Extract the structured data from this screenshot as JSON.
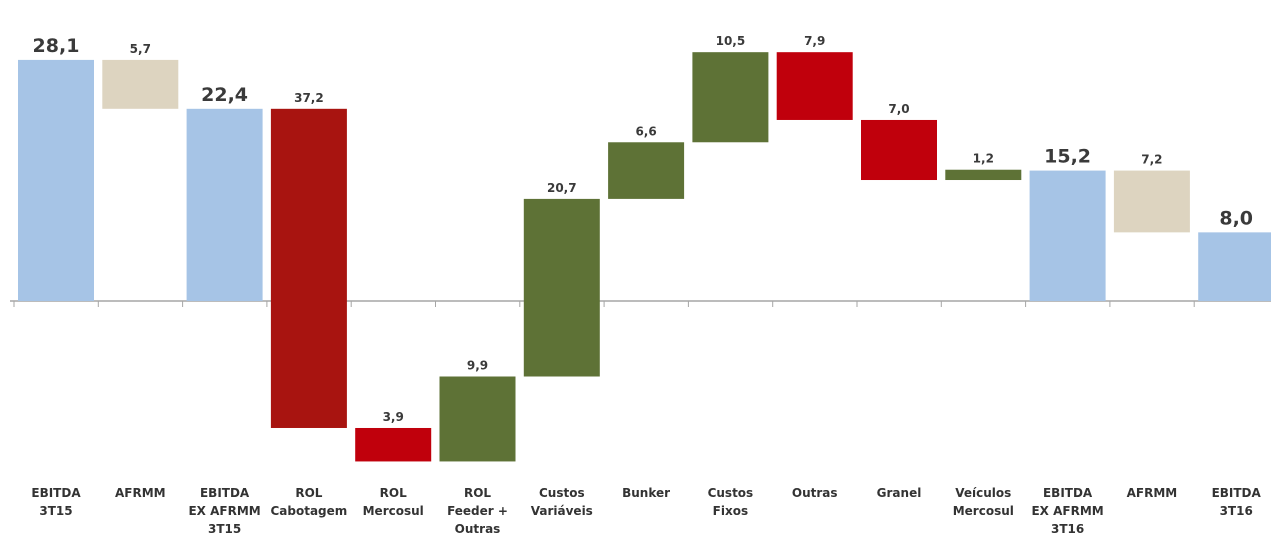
{
  "chart_data": {
    "type": "bar",
    "subtype": "waterfall",
    "grid": false,
    "legend": "none",
    "colors": {
      "total": "#A6C4E6",
      "afrmm": "#DDD4C0",
      "decrease_dark": "#A81410",
      "decrease": "#C0000C",
      "increase": "#5E7236",
      "axis": "#A6A6A6"
    },
    "bars": [
      {
        "category": [
          "EBITDA",
          "3T15"
        ],
        "value": 28.1,
        "label": "28,1",
        "start": 0,
        "end": 28.1,
        "kind": "total",
        "emphasis": true
      },
      {
        "category": [
          "AFRMM"
        ],
        "value": 5.7,
        "label": "5,7",
        "start": 28.1,
        "end": 22.4,
        "kind": "afrmm",
        "emphasis": false
      },
      {
        "category": [
          "EBITDA",
          "EX AFRMM",
          "3T15"
        ],
        "value": 22.4,
        "label": "22,4",
        "start": 0,
        "end": 22.4,
        "kind": "total",
        "emphasis": true
      },
      {
        "category": [
          "ROL",
          "Cabotagem"
        ],
        "value": 37.2,
        "label": "37,2",
        "start": 22.4,
        "end": -14.8,
        "kind": "decrease_dark",
        "emphasis": false
      },
      {
        "category": [
          "ROL",
          "Mercosul"
        ],
        "value": 3.9,
        "label": "3,9",
        "start": -14.8,
        "end": -18.7,
        "kind": "decrease",
        "emphasis": false
      },
      {
        "category": [
          "ROL",
          "Feeder +",
          "Outras"
        ],
        "value": 9.9,
        "label": "9,9",
        "start": -18.7,
        "end": -8.8,
        "kind": "increase",
        "emphasis": false
      },
      {
        "category": [
          "Custos",
          "Variáveis"
        ],
        "value": 20.7,
        "label": "20,7",
        "start": -8.8,
        "end": 11.9,
        "kind": "increase",
        "emphasis": false
      },
      {
        "category": [
          "Bunker"
        ],
        "value": 6.6,
        "label": "6,6",
        "start": 11.9,
        "end": 18.5,
        "kind": "increase",
        "emphasis": false
      },
      {
        "category": [
          "Custos",
          "Fixos"
        ],
        "value": 10.5,
        "label": "10,5",
        "start": 18.5,
        "end": 29.0,
        "kind": "increase",
        "emphasis": false
      },
      {
        "category": [
          "Outras"
        ],
        "value": 7.9,
        "label": "7,9",
        "start": 29.0,
        "end": 21.1,
        "kind": "decrease",
        "emphasis": false
      },
      {
        "category": [
          "Granel"
        ],
        "value": 7.0,
        "label": "7,0",
        "start": 21.1,
        "end": 14.1,
        "kind": "decrease",
        "emphasis": false
      },
      {
        "category": [
          "Veículos",
          "Mercosul"
        ],
        "value": 1.2,
        "label": "1,2",
        "start": 14.1,
        "end": 15.3,
        "kind": "increase",
        "emphasis": false
      },
      {
        "category": [
          "EBITDA",
          "EX AFRMM",
          "3T16"
        ],
        "value": 15.2,
        "label": "15,2",
        "start": 0,
        "end": 15.2,
        "kind": "total",
        "emphasis": true
      },
      {
        "category": [
          "AFRMM"
        ],
        "value": 7.2,
        "label": "7,2",
        "start": 15.2,
        "end": 8.0,
        "kind": "afrmm",
        "emphasis": false
      },
      {
        "category": [
          "EBITDA",
          "3T16"
        ],
        "value": 8.0,
        "label": "8,0",
        "start": 0,
        "end": 8.0,
        "kind": "total",
        "emphasis": true
      }
    ]
  }
}
